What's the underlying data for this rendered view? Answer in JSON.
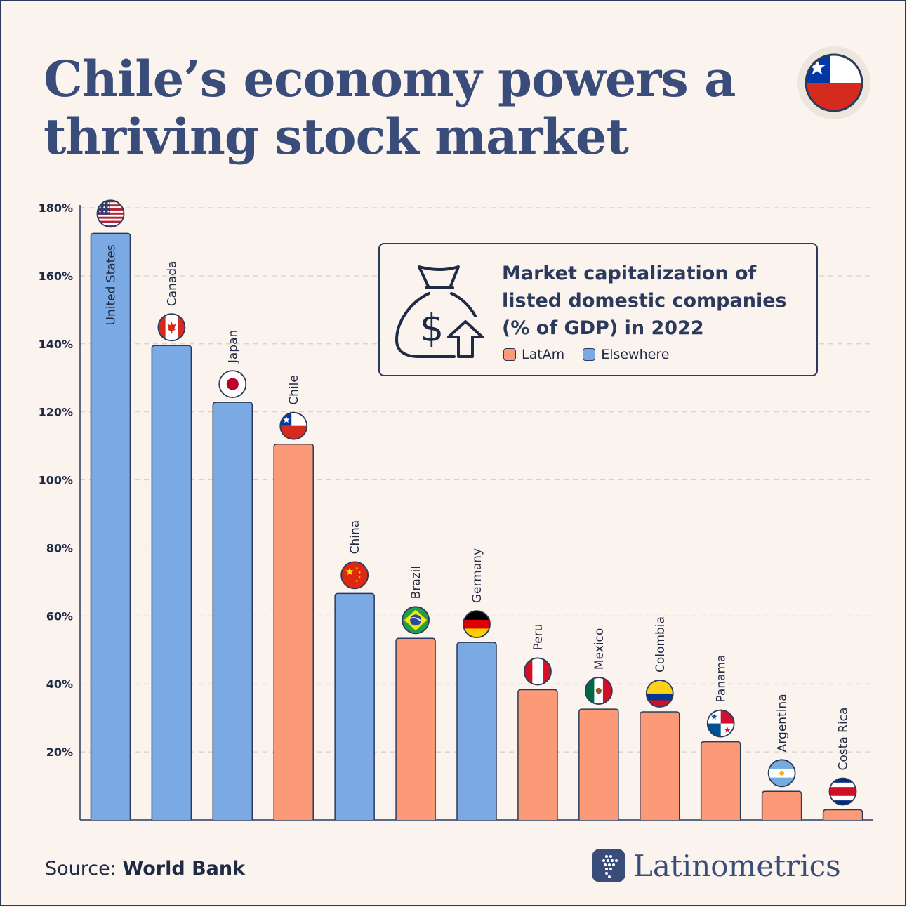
{
  "header": {
    "title_line1": "Chile’s economy powers a",
    "title_line2": "thriving stock market",
    "flag_icon": "chile-flag-icon"
  },
  "legend": {
    "title_line1": "Market capitalization of",
    "title_line2": "listed domestic companies",
    "title_line3": "(% of GDP) in 2022",
    "icon": "money-bag-up-arrow-icon",
    "items": [
      {
        "label": "LatAm",
        "color": "#fc9a78"
      },
      {
        "label": "Elsewhere",
        "color": "#7aa9e3"
      }
    ]
  },
  "chart_data": {
    "type": "bar",
    "title": "Market capitalization of listed domestic companies (% of GDP) in 2022",
    "xlabel": "",
    "ylabel": "",
    "ylim": [
      0,
      180
    ],
    "yticks": [
      20,
      40,
      60,
      80,
      100,
      120,
      140,
      160,
      180
    ],
    "ytick_labels": [
      "20%",
      "40%",
      "60%",
      "80%",
      "100%",
      "120%",
      "140%",
      "160%",
      "180%"
    ],
    "grid": true,
    "legend_position": "top-right",
    "colors": {
      "LatAm": "#fc9a78",
      "Elsewhere": "#7aa9e3"
    },
    "categories": [
      "United States",
      "Canada",
      "Japan",
      "Chile",
      "China",
      "Brazil",
      "Germany",
      "Peru",
      "Mexico",
      "Colombia",
      "Panama",
      "Argentina",
      "Costa Rica"
    ],
    "values": [
      172.5,
      139.5,
      122.8,
      110.5,
      66.6,
      53.4,
      52.2,
      38.3,
      32.6,
      31.8,
      23.0,
      8.4,
      3.0
    ],
    "groups": [
      "Elsewhere",
      "Elsewhere",
      "Elsewhere",
      "LatAm",
      "Elsewhere",
      "LatAm",
      "Elsewhere",
      "LatAm",
      "LatAm",
      "LatAm",
      "LatAm",
      "LatAm",
      "LatAm"
    ],
    "flags": [
      "us-flag-icon",
      "canada-flag-icon",
      "japan-flag-icon",
      "chile-flag-icon",
      "china-flag-icon",
      "brazil-flag-icon",
      "germany-flag-icon",
      "peru-flag-icon",
      "mexico-flag-icon",
      "colombia-flag-icon",
      "panama-flag-icon",
      "argentina-flag-icon",
      "costa-rica-flag-icon"
    ]
  },
  "footer": {
    "source_prefix": "Source:",
    "source_name": "World Bank",
    "brand": "Latinometrics",
    "brand_icon": "latinometrics-logo-icon"
  }
}
